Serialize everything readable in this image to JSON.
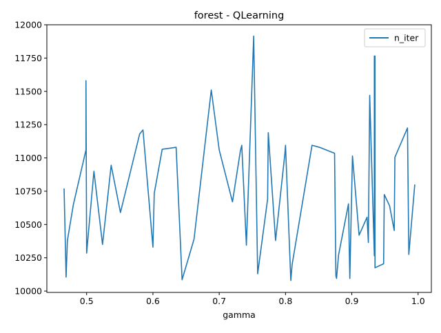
{
  "chart_data": {
    "type": "line",
    "title": "forest - QLearning",
    "xlabel": "gamma",
    "ylabel": "",
    "xlim": [
      0.44,
      1.02
    ],
    "ylim": [
      9990,
      12000
    ],
    "xticks": [
      0.5,
      0.6,
      0.7,
      0.8,
      0.9,
      1.0
    ],
    "xtick_labels": [
      "0.5",
      "0.6",
      "0.7",
      "0.8",
      "0.9",
      "1.0"
    ],
    "yticks": [
      10000,
      10250,
      10500,
      10750,
      11000,
      11250,
      11500,
      11750,
      12000
    ],
    "ytick_labels": [
      "10000",
      "10250",
      "10500",
      "10750",
      "11000",
      "11250",
      "11500",
      "11750",
      "12000"
    ],
    "legend_position": "top-right",
    "grid": false,
    "series": [
      {
        "name": "n_iter",
        "color": "#1f77b4",
        "x": [
          0.466,
          0.469,
          0.471,
          0.48,
          0.499,
          0.499,
          0.5,
          0.511,
          0.524,
          0.537,
          0.551,
          0.58,
          0.585,
          0.6,
          0.602,
          0.614,
          0.635,
          0.644,
          0.662,
          0.688,
          0.7,
          0.72,
          0.732,
          0.734,
          0.741,
          0.752,
          0.758,
          0.773,
          0.774,
          0.785,
          0.799,
          0.8,
          0.808,
          0.81,
          0.84,
          0.851,
          0.874,
          0.876,
          0.877,
          0.88,
          0.895,
          0.897,
          0.901,
          0.911,
          0.923,
          0.925,
          0.927,
          0.934,
          0.934,
          0.935,
          0.935,
          0.948,
          0.949,
          0.957,
          0.964,
          0.965,
          0.984,
          0.986,
          0.995
        ],
        "y": [
          10770,
          10105,
          10380,
          10650,
          11060,
          11580,
          10285,
          10900,
          10350,
          10945,
          10590,
          11180,
          11210,
          10330,
          10735,
          11065,
          11080,
          10085,
          10390,
          11510,
          11060,
          10670,
          11055,
          11095,
          10345,
          11915,
          10130,
          10690,
          11190,
          10380,
          11030,
          11095,
          10080,
          10200,
          11095,
          11080,
          11035,
          10115,
          10095,
          10270,
          10655,
          10095,
          11015,
          10420,
          10555,
          10365,
          11470,
          10265,
          11765,
          11765,
          10175,
          10205,
          10725,
          10640,
          10455,
          11005,
          11225,
          10275,
          10800
        ]
      }
    ]
  }
}
